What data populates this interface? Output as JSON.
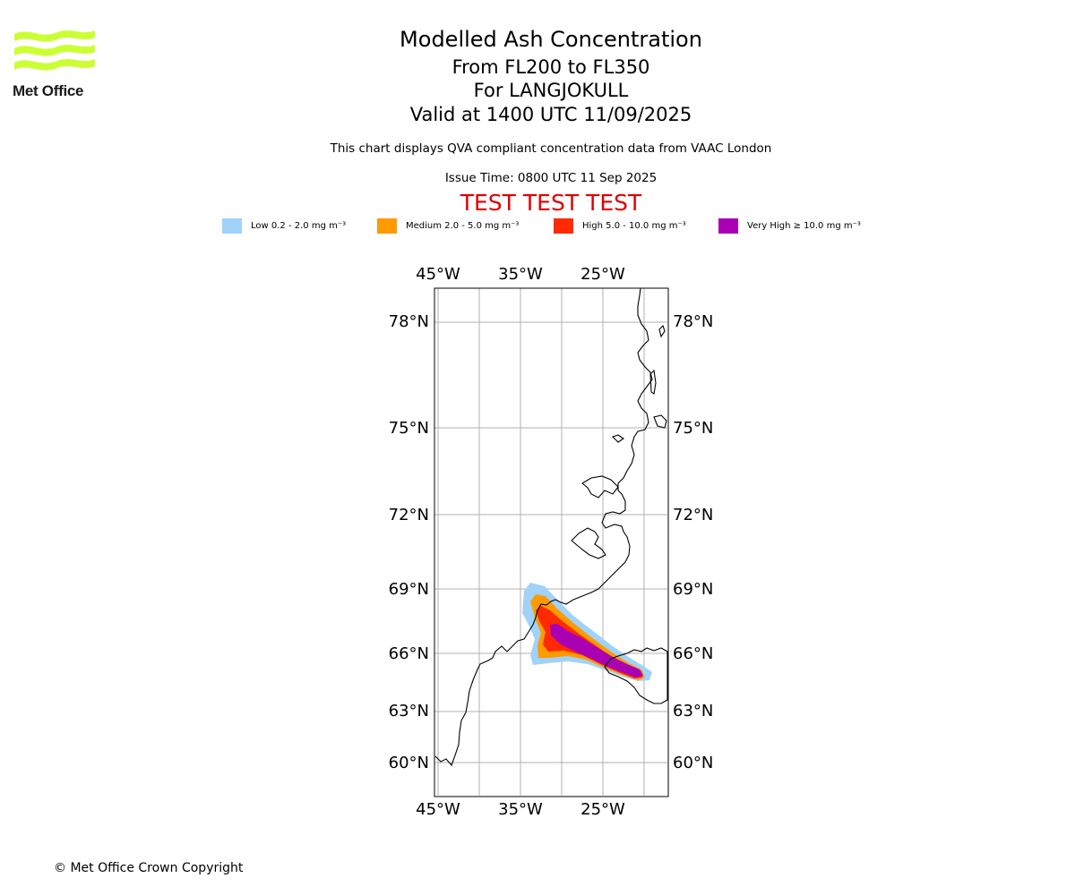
{
  "header": {
    "title": "Modelled Ash Concentration",
    "levels": "From FL200 to FL350",
    "volcano": "For LANGJOKULL",
    "valid": "Valid at 1400 UTC 11/09/2025",
    "description": "This chart displays QVA compliant concentration data from VAAC London",
    "issue_time": "Issue Time: 0800 UTC 11 Sep 2025",
    "test_banner": "TEST TEST TEST"
  },
  "logo": {
    "text": "Met Office",
    "color": "#ccff33"
  },
  "legend": [
    {
      "label": "Low 0.2 - 2.0 mg m⁻³",
      "color": "#a0d2fa"
    },
    {
      "label": "Medium 2.0 - 5.0 mg m⁻³",
      "color": "#ff9a00"
    },
    {
      "label": "High 5.0 - 10.0 mg m⁻³",
      "color": "#ff2a00"
    },
    {
      "label": "Very High ≥ 10.0 mg m⁻³",
      "color": "#aa00b4"
    }
  ],
  "map": {
    "lon_labels": [
      "45°W",
      "35°W",
      "25°W"
    ],
    "lat_labels": [
      "78°N",
      "75°N",
      "72°N",
      "69°N",
      "66°N",
      "63°N",
      "60°N"
    ]
  },
  "footer": {
    "copyright": "© Met Office Crown Copyright"
  }
}
